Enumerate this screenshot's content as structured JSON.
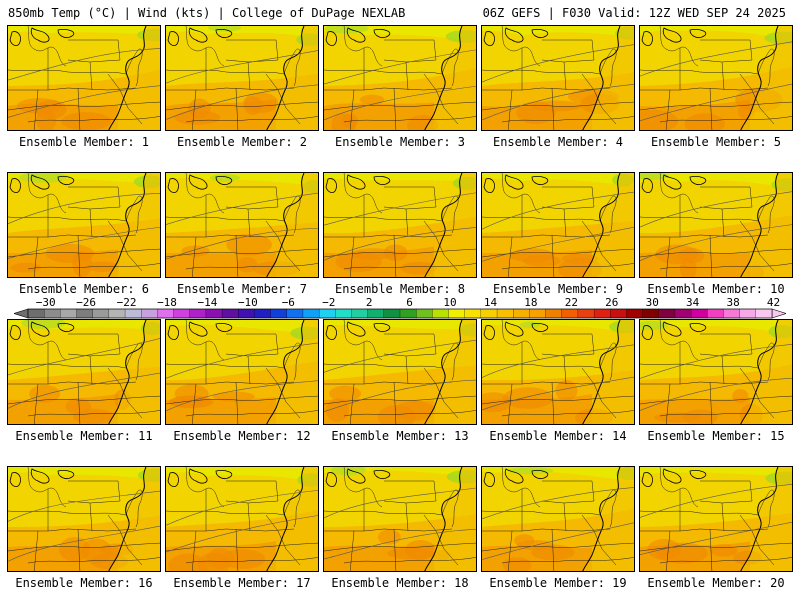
{
  "header": {
    "left": "850mb Temp (°C) | Wind (kts) | College of DuPage NEXLAB",
    "right": "06Z GEFS | F030 Valid: 12Z WED SEP 24 2025"
  },
  "members": [
    {
      "label": "Ensemble Member: 1"
    },
    {
      "label": "Ensemble Member: 2"
    },
    {
      "label": "Ensemble Member: 3"
    },
    {
      "label": "Ensemble Member: 4"
    },
    {
      "label": "Ensemble Member: 5"
    },
    {
      "label": "Ensemble Member: 6"
    },
    {
      "label": "Ensemble Member: 7"
    },
    {
      "label": "Ensemble Member: 8"
    },
    {
      "label": "Ensemble Member: 9"
    },
    {
      "label": "Ensemble Member: 10"
    },
    {
      "label": "Ensemble Member: 11"
    },
    {
      "label": "Ensemble Member: 12"
    },
    {
      "label": "Ensemble Member: 13"
    },
    {
      "label": "Ensemble Member: 14"
    },
    {
      "label": "Ensemble Member: 15"
    },
    {
      "label": "Ensemble Member: 16"
    },
    {
      "label": "Ensemble Member: 17"
    },
    {
      "label": "Ensemble Member: 18"
    },
    {
      "label": "Ensemble Member: 19"
    },
    {
      "label": "Ensemble Member: 20"
    }
  ],
  "colorbar": {
    "tick_labels": [
      "-30",
      "-26",
      "-22",
      "-18",
      "-14",
      "-10",
      "-6",
      "-2",
      "2",
      "6",
      "10",
      "14",
      "18",
      "22",
      "26",
      "30",
      "34",
      "38",
      "42"
    ],
    "colors": [
      "#6e6e6e",
      "#8c8c8c",
      "#a8a8a8",
      "#7d7d7d",
      "#9a9a9a",
      "#b4b4b4",
      "#bcbcd8",
      "#c8a0e0",
      "#e070f0",
      "#d040e0",
      "#b020c8",
      "#8c10b0",
      "#6010a0",
      "#4010b0",
      "#2020c0",
      "#1040d8",
      "#1070f0",
      "#10a0f8",
      "#20d0f0",
      "#20e0c8",
      "#20d0a0",
      "#10b070",
      "#109040",
      "#30a020",
      "#70c020",
      "#b8e000",
      "#f0f000",
      "#f8e000",
      "#f8d000",
      "#f8c000",
      "#f8b000",
      "#f8a000",
      "#f08000",
      "#f06000",
      "#e84010",
      "#e02010",
      "#c81010",
      "#a00000",
      "#800000",
      "#800040",
      "#a00070",
      "#d000a0",
      "#f040c0",
      "#f878d8",
      "#f8a8e8",
      "#f8c8f0"
    ]
  }
}
